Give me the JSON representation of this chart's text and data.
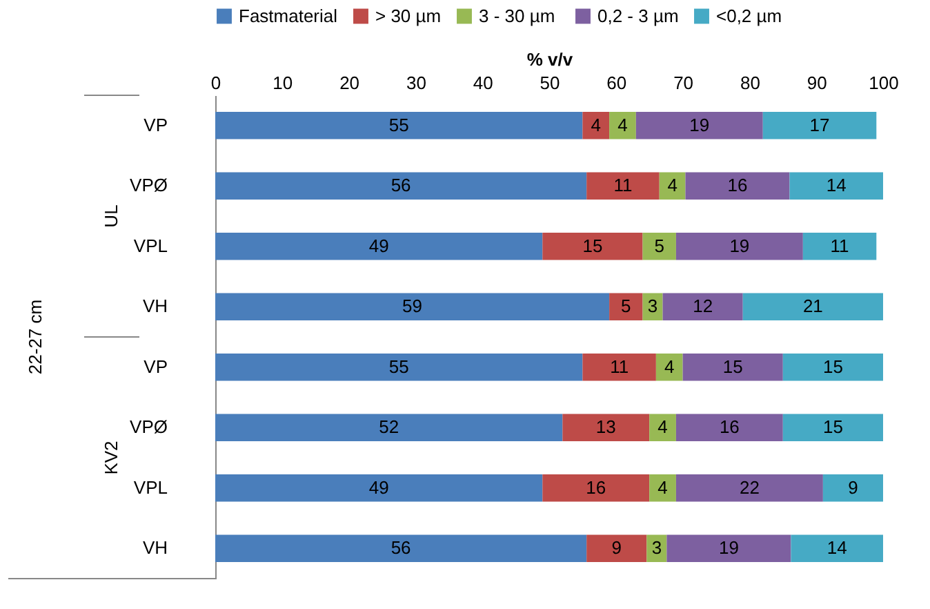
{
  "chart_data": {
    "type": "bar",
    "orientation": "horizontal",
    "stacked": true,
    "xlabel": "% v/v",
    "categories": [
      "VP",
      "VPØ",
      "VPL",
      "VH",
      "VP",
      "VPØ",
      "VPL",
      "VH"
    ],
    "series": [
      {
        "name": "Fastmaterial",
        "color": "#4a7ebb",
        "values": [
          55,
          55.6,
          49,
          59,
          55,
          52,
          49,
          55.6
        ],
        "value_labels": [
          "55",
          "56",
          "49",
          "59",
          "55",
          "52",
          "49",
          "56"
        ]
      },
      {
        "name": "> 30 µm",
        "color": "#be4b48",
        "values": [
          4,
          10.9,
          15,
          5,
          11,
          13,
          16,
          9
        ],
        "value_labels": [
          "4",
          "11",
          "15",
          "5",
          "11",
          "13",
          "16",
          "9"
        ]
      },
      {
        "name": "3  - 30 µm",
        "color": "#98b954",
        "values": [
          4,
          3.9,
          5,
          3,
          4,
          4,
          4,
          3
        ],
        "value_labels": [
          "4",
          "4",
          "5",
          "3",
          "4",
          "4",
          "4",
          "3"
        ]
      },
      {
        "name": "0,2 - 3 µm",
        "color": "#7d60a0",
        "values": [
          19,
          15.6,
          19,
          12,
          15,
          16,
          22,
          18.6
        ],
        "value_labels": [
          "19",
          "16",
          "19",
          "12",
          "15",
          "16",
          "22",
          "19"
        ]
      },
      {
        "name": "<0,2 µm",
        "color": "#46aac5",
        "values": [
          17,
          14,
          11,
          21,
          15,
          15,
          9,
          13.8
        ],
        "value_labels": [
          "17",
          "14",
          "11",
          "21",
          "15",
          "15",
          "9",
          "14"
        ]
      }
    ],
    "xlim": [
      0,
      100
    ],
    "xticks": [
      0,
      10,
      20,
      30,
      40,
      50,
      60,
      70,
      80,
      90,
      100
    ],
    "legend": "top",
    "grid": false,
    "annotations": [
      "UL",
      "KV2",
      "22-27 cm"
    ]
  }
}
